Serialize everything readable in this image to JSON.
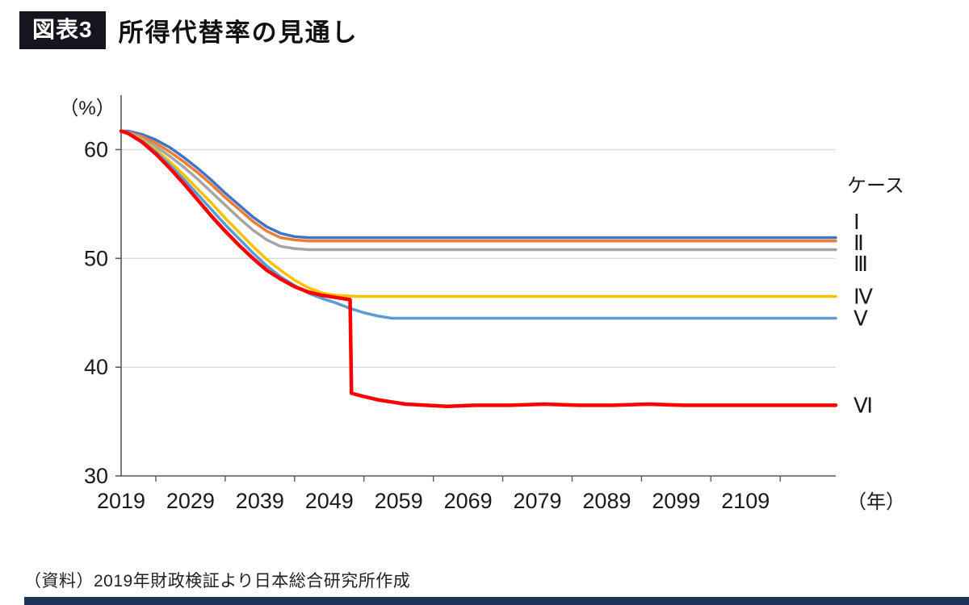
{
  "header": {
    "badge": "図表3",
    "title": "所得代替率の見通し"
  },
  "source": "（資料）2019年財政検証より日本総合研究所作成",
  "chart_data": {
    "type": "line",
    "title": "所得代替率の見通し",
    "ylabel": "（%）",
    "xlabel": "（年）",
    "legend_title": "ケース",
    "legend_position": "right",
    "ylim": [
      30,
      65
    ],
    "xlim": [
      2019,
      2122
    ],
    "y_ticks": [
      30,
      40,
      50,
      60
    ],
    "x_ticks": [
      2019,
      2029,
      2039,
      2049,
      2059,
      2069,
      2079,
      2089,
      2099,
      2109
    ],
    "grid": true,
    "gridline_color": "#d9d9d9",
    "axis_color": "#595959",
    "series": [
      {
        "name": "Ⅰ",
        "color": "#4472C4",
        "width": 3.5,
        "final_value": 51.9,
        "x": [
          2019,
          2020,
          2022,
          2024,
          2026,
          2028,
          2030,
          2032,
          2034,
          2036,
          2038,
          2040,
          2042,
          2044,
          2046,
          2122
        ],
        "y": [
          61.7,
          61.7,
          61.4,
          60.9,
          60.2,
          59.3,
          58.3,
          57.2,
          56.0,
          54.9,
          53.8,
          52.9,
          52.3,
          52.0,
          51.9,
          51.9
        ]
      },
      {
        "name": "Ⅱ",
        "color": "#ED7D31",
        "width": 3.5,
        "final_value": 51.6,
        "x": [
          2019,
          2020,
          2022,
          2024,
          2026,
          2028,
          2030,
          2032,
          2034,
          2036,
          2038,
          2040,
          2042,
          2044,
          2046,
          2122
        ],
        "y": [
          61.7,
          61.6,
          61.2,
          60.6,
          59.8,
          58.9,
          57.9,
          56.8,
          55.6,
          54.5,
          53.4,
          52.5,
          51.9,
          51.7,
          51.6,
          51.6
        ]
      },
      {
        "name": "Ⅲ",
        "color": "#A5A5A5",
        "width": 3.5,
        "final_value": 50.8,
        "x": [
          2019,
          2020,
          2022,
          2024,
          2026,
          2028,
          2030,
          2032,
          2034,
          2036,
          2038,
          2040,
          2042,
          2044,
          2046,
          2122
        ],
        "y": [
          61.7,
          61.6,
          61.0,
          60.3,
          59.4,
          58.4,
          57.3,
          56.1,
          54.9,
          53.7,
          52.6,
          51.7,
          51.1,
          50.9,
          50.8,
          50.8
        ]
      },
      {
        "name": "Ⅳ",
        "color": "#FFC000",
        "width": 3.5,
        "final_value": 46.5,
        "x": [
          2019,
          2020,
          2022,
          2024,
          2026,
          2028,
          2030,
          2032,
          2034,
          2036,
          2038,
          2040,
          2042,
          2044,
          2046,
          2048,
          2050,
          2053,
          2122
        ],
        "y": [
          61.7,
          61.5,
          60.9,
          60.0,
          58.9,
          57.7,
          56.4,
          55.1,
          53.7,
          52.4,
          51.1,
          49.9,
          48.9,
          48.0,
          47.3,
          46.8,
          46.6,
          46.5,
          46.5
        ]
      },
      {
        "name": "Ⅴ",
        "color": "#5B9BD5",
        "width": 3.5,
        "final_value": 44.5,
        "x": [
          2019,
          2020,
          2022,
          2024,
          2026,
          2028,
          2030,
          2032,
          2034,
          2036,
          2038,
          2040,
          2042,
          2044,
          2046,
          2048,
          2050,
          2052,
          2054,
          2056,
          2058,
          2122
        ],
        "y": [
          61.7,
          61.5,
          60.8,
          59.8,
          58.6,
          57.3,
          55.9,
          54.5,
          53.1,
          51.8,
          50.5,
          49.3,
          48.3,
          47.5,
          46.8,
          46.3,
          45.9,
          45.4,
          45.0,
          44.7,
          44.5,
          44.5
        ]
      },
      {
        "name": "Ⅵ",
        "color": "#FF0000",
        "width": 4.5,
        "final_value": 36.5,
        "x": [
          2019,
          2020,
          2022,
          2024,
          2026,
          2028,
          2030,
          2032,
          2034,
          2036,
          2038,
          2040,
          2042,
          2044,
          2046,
          2048,
          2050,
          2052,
          2052.2,
          2054,
          2056,
          2058,
          2060,
          2063,
          2066,
          2070,
          2075,
          2080,
          2085,
          2090,
          2095,
          2100,
          2105,
          2110,
          2115,
          2122
        ],
        "y": [
          61.7,
          61.5,
          60.7,
          59.6,
          58.3,
          56.9,
          55.4,
          53.9,
          52.5,
          51.2,
          50.0,
          48.9,
          48.1,
          47.4,
          46.9,
          46.6,
          46.4,
          46.2,
          37.6,
          37.3,
          37.0,
          36.8,
          36.6,
          36.5,
          36.4,
          36.5,
          36.5,
          36.6,
          36.5,
          36.5,
          36.6,
          36.5,
          36.5,
          36.5,
          36.5,
          36.5
        ]
      }
    ]
  }
}
